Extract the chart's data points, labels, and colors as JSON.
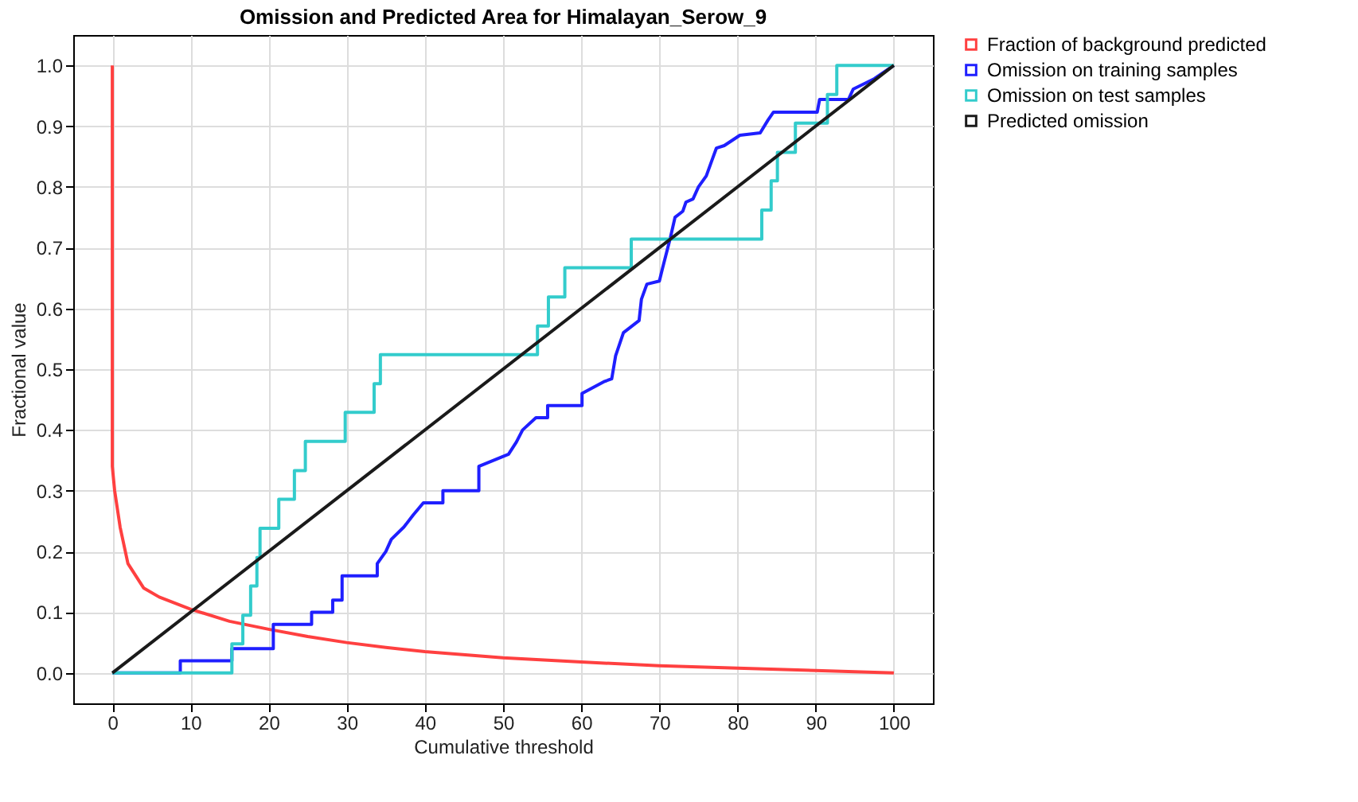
{
  "chart_data": {
    "type": "line",
    "title": "Omission and Predicted Area for Himalayan_Serow_9",
    "xlabel": "Cumulative threshold",
    "ylabel": "Fractional value",
    "xlim": [
      -5,
      105
    ],
    "ylim": [
      -0.05,
      1.05
    ],
    "xticks": [
      0,
      10,
      20,
      30,
      40,
      50,
      60,
      70,
      80,
      90,
      100
    ],
    "yticks": [
      {
        "value": 0,
        "label": "0.0"
      },
      {
        "value": 0.1,
        "label": "0.1"
      },
      {
        "value": 0.2,
        "label": "0.2"
      },
      {
        "value": 0.3,
        "label": "0.3"
      },
      {
        "value": 0.4,
        "label": "0.4"
      },
      {
        "value": 0.5,
        "label": "0.5"
      },
      {
        "value": 0.6,
        "label": "0.6"
      },
      {
        "value": 0.7,
        "label": "0.7"
      },
      {
        "value": 0.8,
        "label": "0.8"
      },
      {
        "value": 0.9,
        "label": "0.9"
      },
      {
        "value": 1,
        "label": "1.0"
      }
    ],
    "grid": true,
    "legend": "right",
    "marker": "none",
    "line_style": "solid",
    "series": [
      {
        "name": "Fraction of background predicted",
        "color": "#ff4040",
        "x": [
          0,
          0,
          0.3,
          1,
          2,
          4,
          6,
          10,
          15,
          20,
          25,
          30,
          35,
          40,
          50,
          60,
          70,
          80,
          90,
          100
        ],
        "values": [
          1.0,
          0.34,
          0.3,
          0.24,
          0.18,
          0.14,
          0.125,
          0.105,
          0.085,
          0.072,
          0.06,
          0.05,
          0.042,
          0.035,
          0.025,
          0.018,
          0.012,
          0.008,
          0.004,
          0
        ]
      },
      {
        "name": "Omission on training samples",
        "color": "#1f1fff",
        "x": [
          0,
          8.7,
          8.7,
          15.3,
          15.3,
          20.6,
          20.6,
          25.5,
          25.5,
          28.2,
          28.2,
          29.4,
          29.4,
          33.9,
          33.9,
          35,
          35.7,
          37.3,
          38.5,
          39.8,
          42.3,
          42.3,
          46.9,
          46.9,
          50.7,
          51.7,
          52.5,
          54.2,
          55.7,
          55.7,
          60.1,
          60.1,
          63,
          63.9,
          64.4,
          65.4,
          67.4,
          67.7,
          68.4,
          70,
          70.4,
          71.4,
          72,
          73,
          73.4,
          74.3,
          75,
          76,
          76.7,
          77.3,
          78.3,
          80.3,
          82.9,
          83.9,
          84.6,
          90.2,
          90.5,
          94.2,
          94.8,
          97.5,
          100
        ],
        "values": [
          0,
          0,
          0.02,
          0.02,
          0.04,
          0.04,
          0.08,
          0.08,
          0.1,
          0.1,
          0.12,
          0.12,
          0.16,
          0.16,
          0.18,
          0.2,
          0.22,
          0.24,
          0.26,
          0.28,
          0.28,
          0.3,
          0.3,
          0.34,
          0.36,
          0.38,
          0.4,
          0.42,
          0.42,
          0.44,
          0.44,
          0.46,
          0.48,
          0.484,
          0.522,
          0.56,
          0.58,
          0.615,
          0.64,
          0.645,
          0.666,
          0.716,
          0.75,
          0.76,
          0.775,
          0.78,
          0.8,
          0.818,
          0.843,
          0.864,
          0.868,
          0.885,
          0.889,
          0.91,
          0.923,
          0.923,
          0.944,
          0.944,
          0.961,
          0.978,
          1.0
        ]
      },
      {
        "name": "Omission on test samples",
        "color": "#33cccc",
        "type": "step",
        "x": [
          0,
          15.3,
          16.7,
          17.7,
          18.5,
          18.9,
          21.3,
          23.3,
          24.7,
          29.8,
          33.5,
          34.3,
          54.4,
          55.8,
          57.9,
          66.4,
          83.1,
          84.3,
          85.1,
          87.4,
          91.5,
          92.7,
          100
        ],
        "values": [
          0,
          0.048,
          0.095,
          0.143,
          0.19,
          0.238,
          0.286,
          0.333,
          0.381,
          0.429,
          0.476,
          0.524,
          0.571,
          0.619,
          0.667,
          0.714,
          0.762,
          0.81,
          0.857,
          0.905,
          0.952,
          1.0,
          1.0
        ]
      },
      {
        "name": "Predicted omission",
        "color": "#1a1a1a",
        "x": [
          0,
          100
        ],
        "values": [
          0,
          1
        ]
      }
    ]
  }
}
